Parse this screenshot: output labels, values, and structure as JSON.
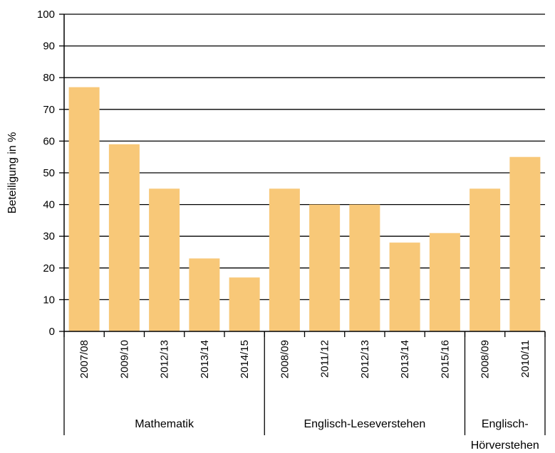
{
  "chart_data": {
    "type": "bar",
    "ylabel": "Beteiligung in %",
    "xlabel": "",
    "ylim": [
      0,
      100
    ],
    "yticks": [
      0,
      10,
      20,
      30,
      40,
      50,
      60,
      70,
      80,
      90,
      100
    ],
    "grid": true,
    "bar_color": "#f8c878",
    "categories": [
      "2007/08",
      "2009/10",
      "2012/13",
      "2013/14",
      "2014/15",
      "2008/09",
      "2011/12",
      "2012/13",
      "2013/14",
      "2015/16",
      "2008/09",
      "2010/11"
    ],
    "values": [
      77,
      59,
      45,
      23,
      17,
      45,
      40,
      40,
      28,
      31,
      45,
      55
    ],
    "groups": [
      {
        "label_lines": [
          "Mathematik"
        ],
        "count": 5
      },
      {
        "label_lines": [
          "Englisch-Leseverstehen"
        ],
        "count": 5
      },
      {
        "label_lines": [
          "Englisch-",
          "Hörverstehen"
        ],
        "count": 2
      }
    ]
  }
}
